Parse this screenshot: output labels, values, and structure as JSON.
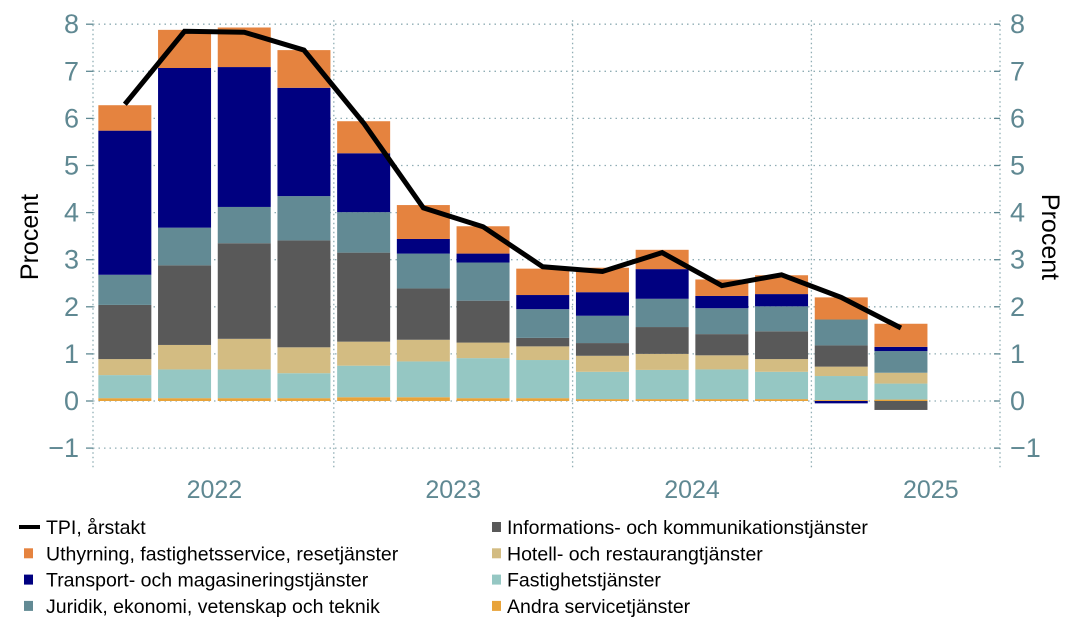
{
  "chart_data": {
    "type": "bar",
    "subtype": "stacked-bar-with-line",
    "ylabel_left": "Procent",
    "ylabel_right": "Procent",
    "ylim": [
      -1,
      8
    ],
    "yticks": [
      -1,
      0,
      1,
      2,
      3,
      4,
      5,
      6,
      7,
      8
    ],
    "grid": true,
    "legend_position": "bottom",
    "year_labels": [
      "2022",
      "2023",
      "2024",
      "2025"
    ],
    "categories": [
      "2022 Q1",
      "2022 Q2",
      "2022 Q3",
      "2022 Q4",
      "2023 Q1",
      "2023 Q2",
      "2023 Q3",
      "2023 Q4",
      "2024 Q1",
      "2024 Q2",
      "2024 Q3",
      "2024 Q4",
      "2025 Q1",
      "2025 Q2"
    ],
    "series": [
      {
        "name": "Andra servicetjänster",
        "color": "#e8a33a",
        "values": [
          0.06,
          0.06,
          0.06,
          0.06,
          0.08,
          0.08,
          0.06,
          0.06,
          0.04,
          0.04,
          0.04,
          0.04,
          0.02,
          0.03
        ]
      },
      {
        "name": "Fastighetstjänster",
        "color": "#95c7c3",
        "values": [
          0.49,
          0.61,
          0.61,
          0.53,
          0.67,
          0.76,
          0.85,
          0.81,
          0.58,
          0.62,
          0.63,
          0.58,
          0.51,
          0.34
        ]
      },
      {
        "name": "Hotell- och restaurangtjänster",
        "color": "#d3bc82",
        "values": [
          0.34,
          0.52,
          0.65,
          0.55,
          0.51,
          0.46,
          0.33,
          0.29,
          0.34,
          0.34,
          0.3,
          0.27,
          0.2,
          0.23
        ]
      },
      {
        "name": "Informations- och kommunikationstjänster",
        "color": "#595959",
        "values": [
          1.15,
          1.69,
          2.03,
          2.27,
          1.89,
          1.09,
          0.89,
          0.18,
          0.27,
          0.57,
          0.45,
          0.59,
          0.45,
          -0.19
        ]
      },
      {
        "name": "Juridik, ekonomi, vetenskap och teknik",
        "color": "#628a94",
        "values": [
          0.64,
          0.8,
          0.77,
          0.94,
          0.86,
          0.74,
          0.81,
          0.61,
          0.58,
          0.6,
          0.55,
          0.53,
          0.55,
          0.46
        ]
      },
      {
        "name": "Transport- och magasineringstjänster",
        "color": "#000080",
        "values": [
          3.06,
          3.39,
          2.97,
          2.3,
          1.25,
          0.31,
          0.19,
          0.3,
          0.5,
          0.63,
          0.26,
          0.26,
          -0.05,
          0.09
        ]
      },
      {
        "name": "Uthyrning, fastighetsservice, resetjänster",
        "color": "#e5833f",
        "values": [
          0.54,
          0.81,
          0.84,
          0.8,
          0.68,
          0.72,
          0.58,
          0.56,
          0.52,
          0.41,
          0.35,
          0.4,
          0.47,
          0.49
        ]
      }
    ],
    "line": {
      "name": "TPI, årstakt",
      "color": "#000000",
      "values": [
        6.3,
        7.85,
        7.83,
        7.45,
        5.9,
        4.1,
        3.7,
        2.85,
        2.75,
        3.15,
        2.45,
        2.68,
        2.2,
        1.55
      ]
    },
    "legend": [
      {
        "label": "TPI, årstakt",
        "kind": "line",
        "color": "#000000"
      },
      {
        "label": "Uthyrning, fastighetsservice, resetjänster",
        "kind": "box",
        "color": "#e5833f"
      },
      {
        "label": "Transport- och magasineringstjänster",
        "kind": "box",
        "color": "#000080"
      },
      {
        "label": "Juridik, ekonomi, vetenskap och teknik",
        "kind": "box",
        "color": "#628a94"
      },
      {
        "label": "Informations- och kommunikationstjänster",
        "kind": "box",
        "color": "#595959"
      },
      {
        "label": "Hotell- och restaurangtjänster",
        "kind": "box",
        "color": "#d3bc82"
      },
      {
        "label": "Fastighetstjänster",
        "kind": "box",
        "color": "#95c7c3"
      },
      {
        "label": "Andra servicetjänster",
        "kind": "box",
        "color": "#e8a33a"
      }
    ]
  }
}
